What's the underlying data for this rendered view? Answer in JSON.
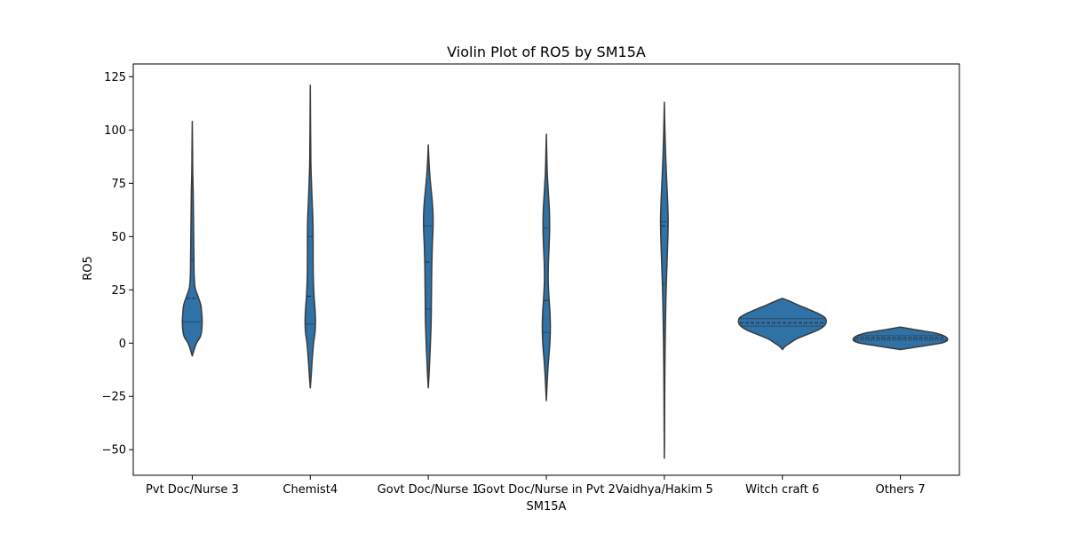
{
  "chart_data": {
    "type": "violin",
    "title": "Violin Plot of RO5 by SM15A",
    "xlabel": "SM15A",
    "ylabel": "RO5",
    "ylim": [
      -62,
      131
    ],
    "yticks": [
      -50,
      -25,
      0,
      25,
      50,
      75,
      100,
      125
    ],
    "color": "#2f72a8",
    "edge_color": "#3a3a3a",
    "categories": [
      "Pvt Doc/Nurse 3",
      "Chemist4",
      "Govt Doc/Nurse 1",
      "Govt Doc/Nurse in Pvt 2",
      "Vaidhya/Hakim 5",
      "Witch craft 6",
      "Others 7"
    ],
    "series": [
      {
        "category": "Pvt Doc/Nurse 3",
        "min": -6,
        "max": 104,
        "quartiles": [
          10,
          21,
          39
        ],
        "profile": [
          [
            -6,
            0
          ],
          [
            -3,
            0.04
          ],
          [
            0,
            0.09
          ],
          [
            3,
            0.17
          ],
          [
            6,
            0.2
          ],
          [
            10,
            0.21
          ],
          [
            14,
            0.2
          ],
          [
            18,
            0.18
          ],
          [
            22,
            0.12
          ],
          [
            26,
            0.06
          ],
          [
            32,
            0.04
          ],
          [
            40,
            0.035
          ],
          [
            50,
            0.03
          ],
          [
            60,
            0.025
          ],
          [
            70,
            0.02
          ],
          [
            80,
            0.01
          ],
          [
            90,
            0.006
          ],
          [
            104,
            0
          ]
        ]
      },
      {
        "category": "Chemist4",
        "min": -21,
        "max": 121,
        "quartiles": [
          9,
          22,
          50
        ],
        "profile": [
          [
            -21,
            0
          ],
          [
            -15,
            0.02
          ],
          [
            -8,
            0.04
          ],
          [
            0,
            0.07
          ],
          [
            5,
            0.1
          ],
          [
            10,
            0.11
          ],
          [
            16,
            0.1
          ],
          [
            22,
            0.08
          ],
          [
            30,
            0.065
          ],
          [
            40,
            0.06
          ],
          [
            50,
            0.06
          ],
          [
            58,
            0.055
          ],
          [
            66,
            0.04
          ],
          [
            75,
            0.025
          ],
          [
            85,
            0.012
          ],
          [
            100,
            0.006
          ],
          [
            121,
            0
          ]
        ]
      },
      {
        "category": "Govt Doc/Nurse 1",
        "min": -21,
        "max": 93,
        "quartiles": [
          16,
          38,
          55
        ],
        "profile": [
          [
            -21,
            0
          ],
          [
            -15,
            0.015
          ],
          [
            -8,
            0.03
          ],
          [
            0,
            0.045
          ],
          [
            10,
            0.06
          ],
          [
            20,
            0.065
          ],
          [
            30,
            0.07
          ],
          [
            38,
            0.075
          ],
          [
            46,
            0.085
          ],
          [
            54,
            0.1
          ],
          [
            60,
            0.1
          ],
          [
            66,
            0.085
          ],
          [
            72,
            0.06
          ],
          [
            78,
            0.035
          ],
          [
            85,
            0.015
          ],
          [
            93,
            0
          ]
        ]
      },
      {
        "category": "Govt Doc/Nurse in Pvt 2",
        "min": -27,
        "max": 98,
        "quartiles": [
          5,
          20,
          54
        ],
        "profile": [
          [
            -27,
            0
          ],
          [
            -20,
            0.015
          ],
          [
            -10,
            0.04
          ],
          [
            0,
            0.075
          ],
          [
            8,
            0.085
          ],
          [
            15,
            0.075
          ],
          [
            22,
            0.055
          ],
          [
            30,
            0.04
          ],
          [
            38,
            0.045
          ],
          [
            46,
            0.06
          ],
          [
            54,
            0.07
          ],
          [
            62,
            0.065
          ],
          [
            70,
            0.045
          ],
          [
            80,
            0.02
          ],
          [
            90,
            0.008
          ],
          [
            98,
            0
          ]
        ]
      },
      {
        "category": "Vaidhya/Hakim 5",
        "min": -54,
        "max": 113,
        "quartiles": [
          28,
          55,
          57
        ],
        "profile": [
          [
            -54,
            0
          ],
          [
            -40,
            0.004
          ],
          [
            -25,
            0.007
          ],
          [
            -10,
            0.012
          ],
          [
            0,
            0.017
          ],
          [
            10,
            0.024
          ],
          [
            20,
            0.032
          ],
          [
            30,
            0.045
          ],
          [
            40,
            0.06
          ],
          [
            50,
            0.075
          ],
          [
            58,
            0.08
          ],
          [
            66,
            0.07
          ],
          [
            76,
            0.05
          ],
          [
            88,
            0.028
          ],
          [
            100,
            0.012
          ],
          [
            113,
            0
          ]
        ]
      },
      {
        "category": "Witch craft 6",
        "min": -3,
        "max": 21,
        "quartiles": [
          8,
          9.5,
          11.5
        ],
        "profile": [
          [
            -3,
            0
          ],
          [
            -1.5,
            0.06
          ],
          [
            0,
            0.16
          ],
          [
            2,
            0.3
          ],
          [
            4,
            0.52
          ],
          [
            6,
            0.74
          ],
          [
            8,
            0.88
          ],
          [
            10,
            0.93
          ],
          [
            12,
            0.9
          ],
          [
            14,
            0.75
          ],
          [
            16,
            0.54
          ],
          [
            18,
            0.32
          ],
          [
            20,
            0.12
          ],
          [
            21,
            0
          ]
        ]
      },
      {
        "category": "Others 7",
        "min": -3,
        "max": 7.5,
        "quartiles": [
          1.5,
          2.5,
          3.5
        ],
        "profile": [
          [
            -3,
            0
          ],
          [
            -2,
            0.3
          ],
          [
            -1,
            0.58
          ],
          [
            0,
            0.86
          ],
          [
            1,
            0.98
          ],
          [
            2,
            1
          ],
          [
            3,
            0.96
          ],
          [
            4,
            0.86
          ],
          [
            5,
            0.68
          ],
          [
            6,
            0.4
          ],
          [
            7,
            0.14
          ],
          [
            7.5,
            0
          ]
        ]
      }
    ]
  }
}
